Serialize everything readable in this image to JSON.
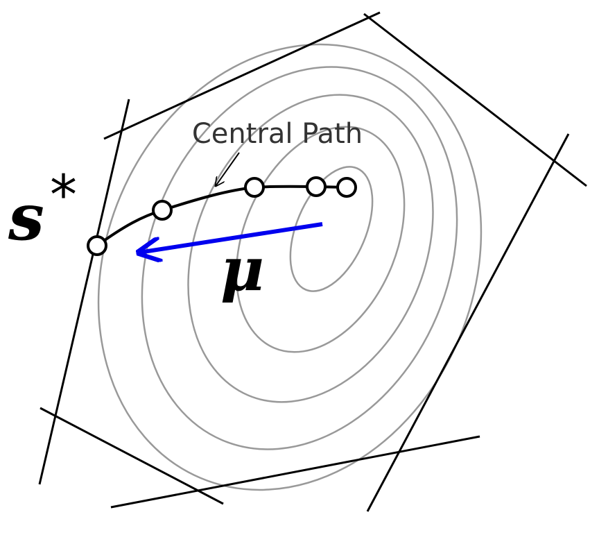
{
  "labels": {
    "central_path": "Central Path",
    "optimum": "s",
    "optimum_mark": "*",
    "mu": "μ"
  }
}
